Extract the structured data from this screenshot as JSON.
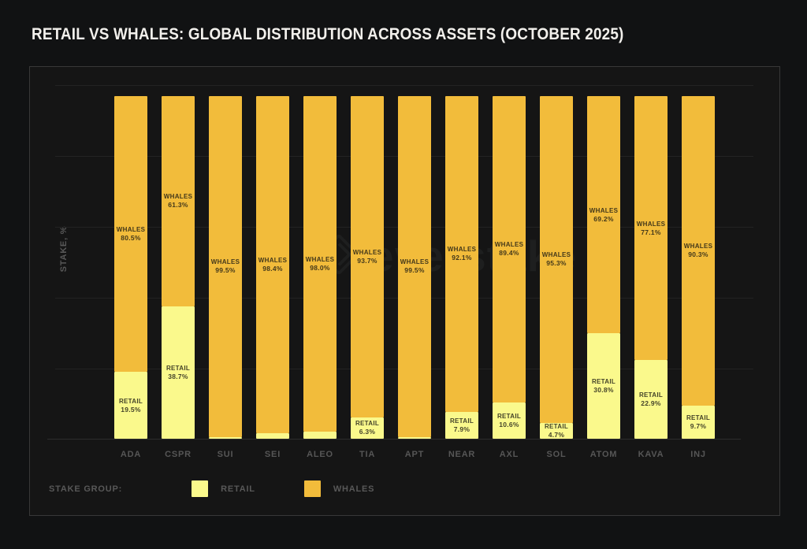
{
  "header": {
    "title": "RETAIL VS WHALES: GLOBAL DISTRIBUTION ACROSS ASSETS (OCTOBER 2025)"
  },
  "y_axis": {
    "label": "STAKE, %"
  },
  "legend": {
    "label": "STAKE GROUP:",
    "items": [
      {
        "label": "RETAIL",
        "color": "#FAF98C"
      },
      {
        "label": "WHALES",
        "color": "#F2BC3B"
      }
    ]
  },
  "watermark": {
    "text": "everstake",
    "icon": "everstake-diamond-logo"
  },
  "colors": {
    "background": "#111213",
    "frame_background": "#151515",
    "frame_border": "#383838",
    "gridline": "#232323",
    "retail": "#FAF98C",
    "whales": "#F2BC3B",
    "bar_label_text": "#1A1812",
    "axis_text": "#565656",
    "title_text": "#F2F0EC",
    "watermark_text": "#1E1F1F"
  },
  "chart_data": {
    "type": "bar",
    "stacked": true,
    "title": "RETAIL VS WHALES: GLOBAL DISTRIBUTION ACROSS ASSETS (OCTOBER 2025)",
    "xlabel": "",
    "ylabel": "STAKE, %",
    "ylim": [
      0,
      100
    ],
    "grid": true,
    "legend_position": "bottom-left",
    "categories": [
      "ADA",
      "CSPR",
      "SUI",
      "SEI",
      "ALEO",
      "TIA",
      "APT",
      "NEAR",
      "AXL",
      "SOL",
      "ATOM",
      "KAVA",
      "INJ"
    ],
    "series": [
      {
        "name": "RETAIL",
        "color": "#FAF98C",
        "values": [
          19.5,
          38.7,
          0.5,
          1.6,
          2.0,
          6.3,
          0.5,
          7.9,
          10.6,
          4.7,
          30.8,
          22.9,
          9.7
        ],
        "label_visible": [
          true,
          true,
          false,
          false,
          false,
          true,
          false,
          true,
          true,
          true,
          true,
          true,
          true
        ]
      },
      {
        "name": "WHALES",
        "color": "#F2BC3B",
        "values": [
          80.5,
          61.3,
          99.5,
          98.4,
          98.0,
          93.7,
          99.5,
          92.1,
          89.4,
          95.3,
          69.2,
          77.1,
          90.3
        ],
        "label_visible": [
          true,
          true,
          true,
          true,
          true,
          true,
          true,
          true,
          true,
          true,
          true,
          true,
          true
        ]
      }
    ]
  }
}
